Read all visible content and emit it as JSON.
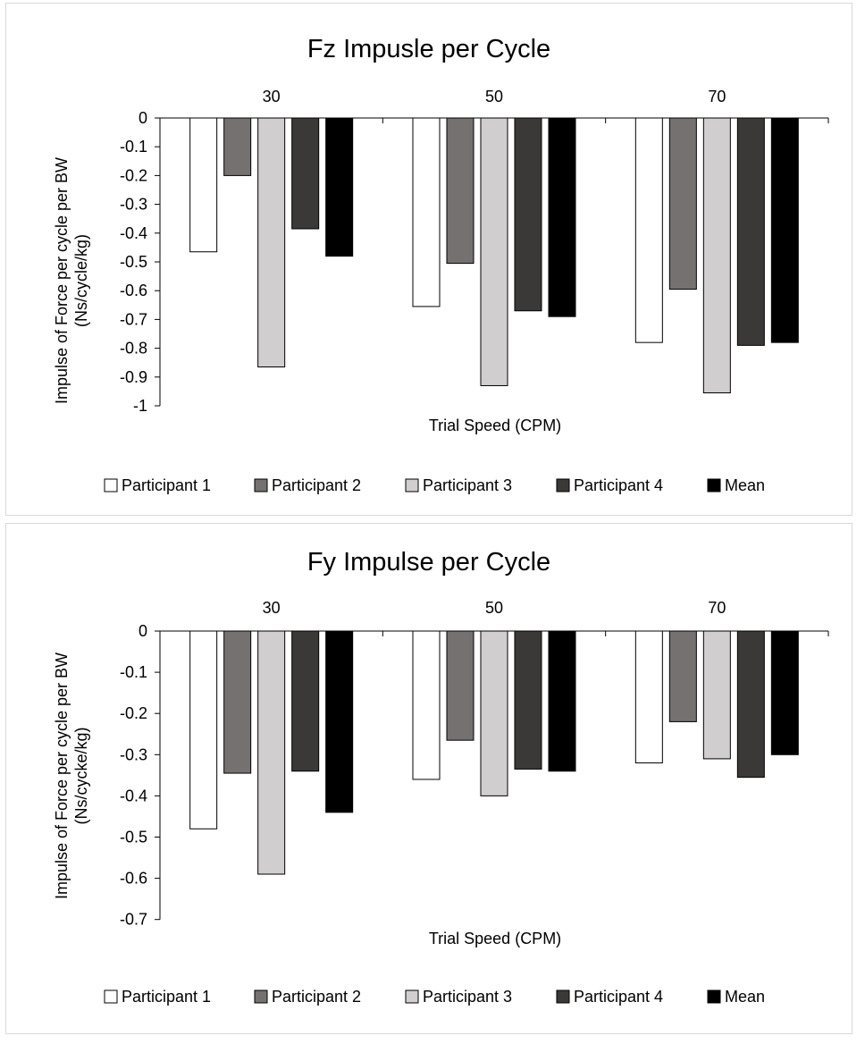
{
  "chart_data": [
    {
      "type": "bar",
      "title": "Fz Impusle per Cycle",
      "xlabel": "Trial Speed (CPM)",
      "ylabel_line1": "Impulse of Force per cycle per BW",
      "ylabel_line2": "(Ns/cycle/kg)",
      "categories": [
        "30",
        "50",
        "70"
      ],
      "ylim": [
        -1,
        0
      ],
      "yticks": [
        0,
        -0.1,
        -0.2,
        -0.3,
        -0.4,
        -0.5,
        -0.6,
        -0.7,
        -0.8,
        -0.9,
        -1
      ],
      "ytick_labels": [
        "0",
        "-0.1",
        "-0.2",
        "-0.3",
        "-0.4",
        "-0.5",
        "-0.6",
        "-0.7",
        "-0.8",
        "-0.9",
        "-1"
      ],
      "x_axis_position": "top",
      "grid": false,
      "legend_position": "bottom",
      "series": [
        {
          "name": "Participant 1",
          "color": "#ffffff",
          "values": [
            -0.465,
            -0.655,
            -0.78
          ]
        },
        {
          "name": "Participant 2",
          "color": "#767171",
          "values": [
            -0.2,
            -0.505,
            -0.595
          ]
        },
        {
          "name": "Participant 3",
          "color": "#d0cece",
          "values": [
            -0.865,
            -0.93,
            -0.955
          ]
        },
        {
          "name": "Participant 4",
          "color": "#3b3838",
          "values": [
            -0.385,
            -0.67,
            -0.79
          ]
        },
        {
          "name": "Mean",
          "color": "#000000",
          "values": [
            -0.48,
            -0.69,
            -0.78
          ]
        }
      ]
    },
    {
      "type": "bar",
      "title": "Fy Impulse per Cycle",
      "xlabel": "Trial Speed (CPM)",
      "ylabel_line1": "Impulse of Force per cycle per BW",
      "ylabel_line2": "(Ns/cycke/kg)",
      "categories": [
        "30",
        "50",
        "70"
      ],
      "ylim": [
        -0.7,
        0
      ],
      "yticks": [
        0,
        -0.1,
        -0.2,
        -0.3,
        -0.4,
        -0.5,
        -0.6,
        -0.7
      ],
      "ytick_labels": [
        "0",
        "-0.1",
        "-0.2",
        "-0.3",
        "-0.4",
        "-0.5",
        "-0.6",
        "-0.7"
      ],
      "x_axis_position": "top",
      "grid": false,
      "legend_position": "bottom",
      "series": [
        {
          "name": "Participant 1",
          "color": "#ffffff",
          "values": [
            -0.48,
            -0.36,
            -0.32
          ]
        },
        {
          "name": "Participant 2",
          "color": "#767171",
          "values": [
            -0.345,
            -0.265,
            -0.22
          ]
        },
        {
          "name": "Participant 3",
          "color": "#d0cece",
          "values": [
            -0.59,
            -0.4,
            -0.31
          ]
        },
        {
          "name": "Participant 4",
          "color": "#3b3838",
          "values": [
            -0.34,
            -0.335,
            -0.355
          ]
        },
        {
          "name": "Mean",
          "color": "#000000",
          "values": [
            -0.44,
            -0.34,
            -0.3
          ]
        }
      ]
    }
  ]
}
